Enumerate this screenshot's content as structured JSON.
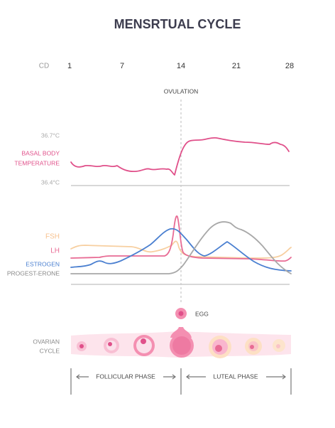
{
  "title": "MENSRTUAL CYCLE",
  "day_axis": {
    "label": "CD",
    "days": [
      1,
      7,
      14,
      21,
      28
    ]
  },
  "ovulation": "OVULATION",
  "temperature": {
    "high": "36.7°C",
    "low": "36.4°C",
    "label": [
      "BASAL BODY",
      "TEMPERATURE"
    ]
  },
  "hormones": {
    "fsh": "FSH",
    "lh": "LH",
    "estrogen": "ESTROGEN",
    "progesterone": "PROGEST-ERONE"
  },
  "egg": "EGG",
  "ovarian": {
    "label": [
      "OVARIAN",
      "CYCLE"
    ]
  },
  "phases": {
    "follicular": "FOLLICULAR PHASE",
    "luteal": "LUTEAL PHASE"
  }
}
